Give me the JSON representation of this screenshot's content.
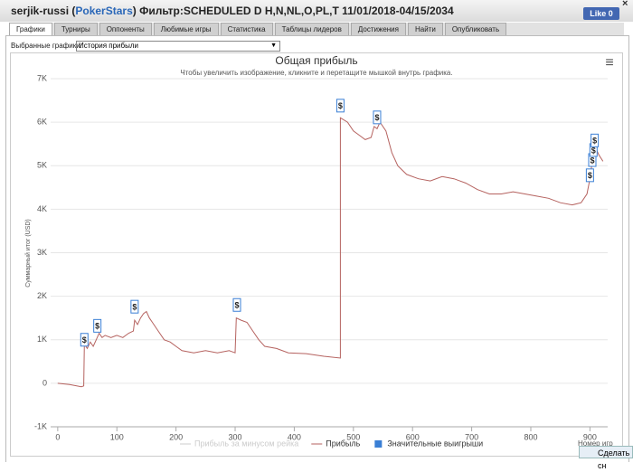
{
  "header": {
    "title_parts": [
      "serjik-russi (",
      "PokerStars",
      ") Фильтр:SCHEDULED D H,N,NL,O,PL,T 11/01/2018-04/15/2034"
    ],
    "like_label": "Like",
    "like_count": 0,
    "close": "×"
  },
  "tabs": [
    "Графики",
    "Турниры",
    "Оппоненты",
    "Любимые игры",
    "Статистика",
    "Таблицы лидеров",
    "Достижения",
    "Найти",
    "Опубликовать"
  ],
  "selector": {
    "label": "Выбранные графики:",
    "value": "История прибыли",
    "arrow": "▼"
  },
  "menu_icon": "≡",
  "snapshot_button": "Сделать сн",
  "chart_data": {
    "type": "line",
    "title": "Общая прибыль",
    "subtitle": "Чтобы увеличить изображение, кликните и перетащите мышкой внутрь графика.",
    "y_label": "Суммарный итог (USD)",
    "x_label": "Номер игр",
    "xlim": [
      -12,
      930
    ],
    "xticks": [
      0,
      100,
      200,
      300,
      400,
      500,
      600,
      700,
      800,
      900
    ],
    "ylim": [
      -1000,
      7000
    ],
    "yticks": [
      {
        "value": -1000,
        "label": "-1K"
      },
      0,
      {
        "value": 1000,
        "label": "1K"
      },
      {
        "value": 2000,
        "label": "2K"
      },
      {
        "value": 3000,
        "label": "3K"
      },
      {
        "value": 4000,
        "label": "4K"
      },
      {
        "value": 5000,
        "label": "5K"
      },
      {
        "value": 6000,
        "label": "6K"
      },
      {
        "value": 7000,
        "label": "7K"
      }
    ],
    "grid": true,
    "marker_symbol": "$",
    "series": [
      {
        "name": "Прибыль за минусом рейка",
        "color": "#cccccc",
        "visible": false
      },
      {
        "name": "Прибыль",
        "color": "#b5625f",
        "x": [
          0,
          20,
          40,
          44,
          45,
          50,
          55,
          60,
          65,
          70,
          75,
          80,
          90,
          100,
          110,
          120,
          128,
          130,
          135,
          140,
          145,
          150,
          155,
          160,
          170,
          180,
          190,
          200,
          210,
          230,
          250,
          270,
          290,
          300,
          302,
          310,
          320,
          330,
          340,
          350,
          370,
          390,
          420,
          450,
          478,
          478,
          490,
          500,
          510,
          520,
          530,
          535,
          540,
          545,
          555,
          565,
          575,
          590,
          610,
          630,
          650,
          670,
          690,
          710,
          730,
          750,
          770,
          790,
          810,
          830,
          850,
          870,
          885,
          895,
          900,
          903,
          907,
          910,
          915,
          922
        ],
        "values": [
          0,
          -30,
          -80,
          -60,
          900,
          800,
          950,
          850,
          1000,
          1150,
          1050,
          1100,
          1050,
          1100,
          1050,
          1150,
          1200,
          1450,
          1350,
          1500,
          1600,
          1650,
          1500,
          1400,
          1200,
          1000,
          950,
          850,
          750,
          700,
          750,
          700,
          750,
          700,
          1500,
          1450,
          1400,
          1200,
          1000,
          850,
          800,
          700,
          680,
          620,
          580,
          6100,
          6000,
          5800,
          5700,
          5600,
          5650,
          5900,
          5850,
          6000,
          5800,
          5300,
          5000,
          4800,
          4700,
          4650,
          4750,
          4700,
          4600,
          4450,
          4350,
          4350,
          4400,
          4350,
          4300,
          4250,
          4150,
          4100,
          4150,
          4350,
          4700,
          5000,
          5200,
          5400,
          5250,
          5100
        ]
      },
      {
        "name": "Значительные выигрыши",
        "color": "#3a7fd5",
        "marker": true,
        "x": [
          45,
          67,
          130,
          303,
          478,
          540,
          900,
          904,
          906,
          908
        ],
        "values": [
          1000,
          1320,
          1760,
          1800,
          6380,
          6110,
          4780,
          5130,
          5360,
          5580
        ]
      }
    ]
  }
}
